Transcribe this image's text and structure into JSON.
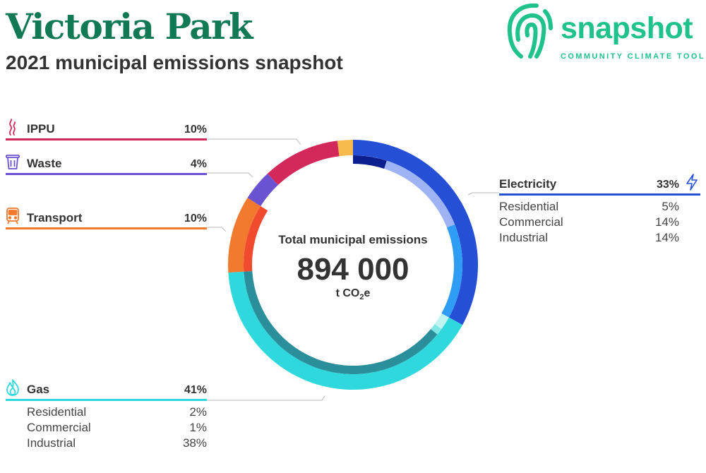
{
  "header": {
    "title": "Victoria Park",
    "subtitle": "2021 municipal emissions snapshot"
  },
  "logo": {
    "word": "snapshot",
    "tagline": "COMMUNITY CLIMATE TOOL",
    "color": "#1fc28a"
  },
  "center": {
    "label": "Total municipal emissions",
    "value": "894 000",
    "unit_prefix": "t CO",
    "unit_sub": "2",
    "unit_suffix": "e"
  },
  "chart_data": {
    "type": "pie",
    "title": "Total municipal emissions",
    "total": 894000,
    "unit": "t CO2e",
    "categories": [
      {
        "name": "Electricity",
        "pct": "33%",
        "value": 33,
        "color": "#2550d6",
        "icon": "lightning-icon",
        "subs": [
          {
            "name": "Residential",
            "pct": "5%",
            "value": 5,
            "color": "#0b1f8f"
          },
          {
            "name": "Commercial",
            "pct": "14%",
            "value": 14,
            "color": "#9db3f3"
          },
          {
            "name": "Industrial",
            "pct": "14%",
            "value": 14,
            "color": "#2f9cf5"
          }
        ]
      },
      {
        "name": "Gas",
        "pct": "41%",
        "value": 41,
        "color": "#2ed8dc",
        "icon": "flame-icon",
        "subs": [
          {
            "name": "Residential",
            "pct": "2%",
            "value": 2,
            "color": "#bff4f1"
          },
          {
            "name": "Commercial",
            "pct": "1%",
            "value": 1,
            "color": "#7fe6e3"
          },
          {
            "name": "Industrial",
            "pct": "38%",
            "value": 38,
            "color": "#2a8f9a"
          }
        ]
      },
      {
        "name": "Transport",
        "pct": "10%",
        "value": 10,
        "color": "#f27a2e",
        "icon": "train-icon",
        "subs": [
          {
            "name": "",
            "pct": "",
            "value": 10,
            "color": "#f24a2e"
          }
        ]
      },
      {
        "name": "Waste",
        "pct": "4%",
        "value": 4,
        "color": "#6b52d1",
        "icon": "bin-icon",
        "subs": []
      },
      {
        "name": "IPPU",
        "pct": "10%",
        "value": 10,
        "color": "#d2285a",
        "icon": "smoke-icon",
        "subs": []
      },
      {
        "name": "",
        "pct": "",
        "value": 2,
        "color": "#f7bb4d",
        "icon": "",
        "subs": []
      }
    ]
  }
}
